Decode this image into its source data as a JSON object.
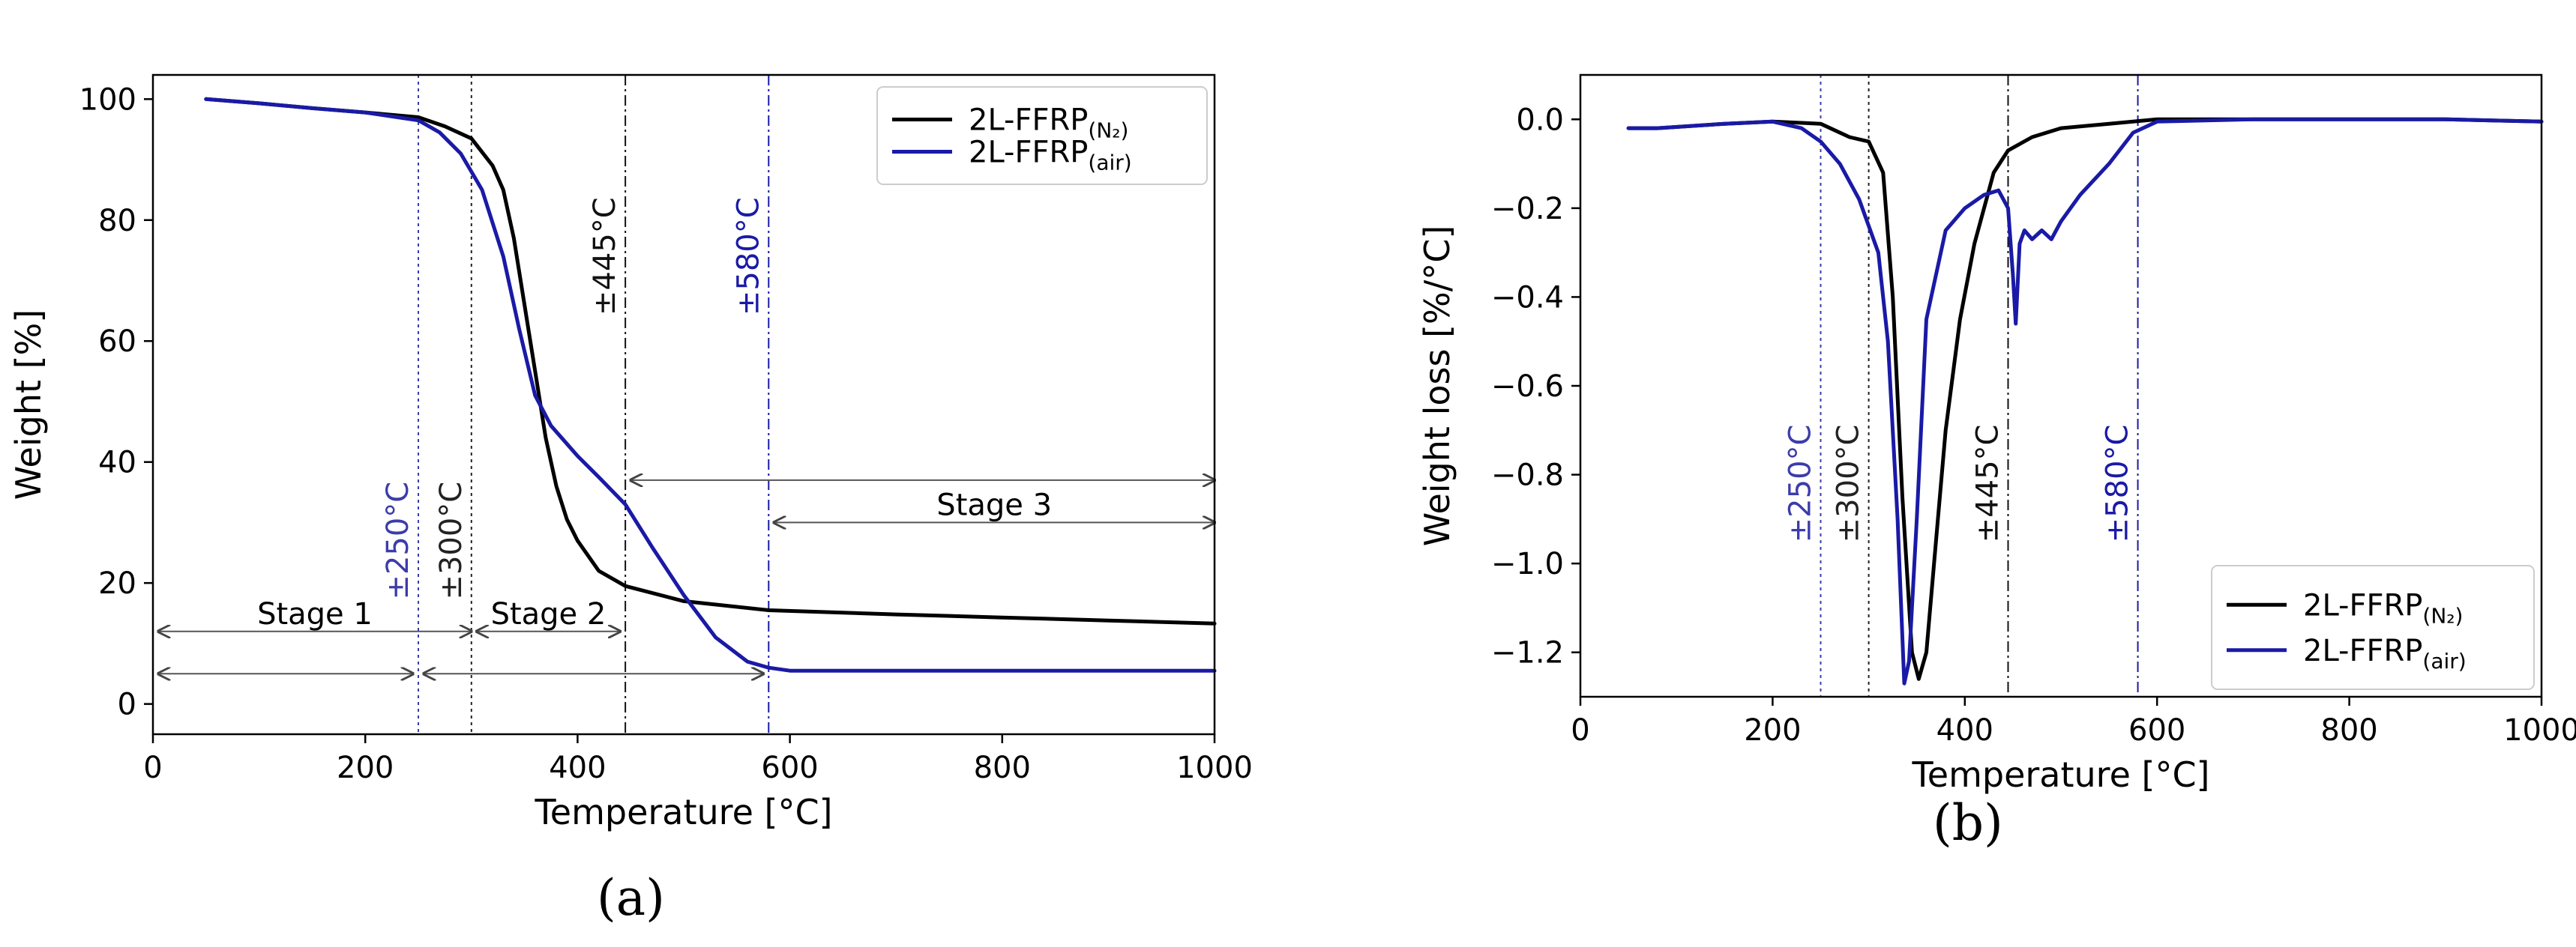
{
  "chart_data": [
    {
      "type": "line",
      "panel_label": "(a)",
      "xlabel": "Temperature [°C]",
      "ylabel": "Weight [%]",
      "xlim": [
        0,
        1000
      ],
      "ylim": [
        -5,
        104
      ],
      "xticks": [
        0,
        200,
        400,
        600,
        800,
        1000
      ],
      "yticks": [
        0,
        20,
        40,
        60,
        80,
        100
      ],
      "grid": false,
      "legend_position": "top-right",
      "series": [
        {
          "name": "2L-FFRP(N₂)",
          "base": "2L-FFRP",
          "sub": "(N₂)",
          "color": "#000000",
          "x": [
            50,
            100,
            150,
            200,
            250,
            275,
            300,
            320,
            330,
            340,
            350,
            360,
            370,
            380,
            390,
            400,
            420,
            445,
            500,
            580,
            700,
            800,
            900,
            1000
          ],
          "y": [
            100,
            99.3,
            98.5,
            97.8,
            97,
            95.5,
            93.5,
            89,
            85,
            77,
            66,
            55,
            44,
            36,
            30.5,
            27,
            22,
            19.5,
            17,
            15.5,
            14.8,
            14.3,
            13.8,
            13.3
          ]
        },
        {
          "name": "2L-FFRP(air)",
          "base": "2L-FFRP",
          "sub": "(air)",
          "color": "#1a1aa6",
          "x": [
            50,
            100,
            150,
            200,
            250,
            270,
            290,
            310,
            330,
            345,
            360,
            375,
            400,
            420,
            445,
            470,
            500,
            530,
            560,
            580,
            600,
            700,
            800,
            900,
            1000
          ],
          "y": [
            100,
            99.3,
            98.5,
            97.8,
            96.5,
            94.5,
            91,
            85,
            74,
            62,
            51,
            46,
            41,
            37.5,
            33,
            26,
            18,
            11,
            7,
            6,
            5.5,
            5.5,
            5.5,
            5.5,
            5.5
          ]
        }
      ],
      "vlines": [
        {
          "x": 250,
          "label": "±250°C",
          "color": "#3c3caa",
          "style": "dotted",
          "label_y": 27
        },
        {
          "x": 300,
          "label": "±300°C",
          "color": "#222222",
          "style": "dotted",
          "label_y": 27
        },
        {
          "x": 445,
          "label": "±445°C",
          "color": "#111111",
          "style": "dashdot",
          "label_y": 74
        },
        {
          "x": 580,
          "label": "±580°C",
          "color": "#1a1aa6",
          "style": "dashdot",
          "label_y": 74
        }
      ],
      "stages": [
        {
          "label": "Stage 1",
          "x0": 5,
          "x1": 300,
          "y": 12
        },
        {
          "label": "",
          "x0": 5,
          "x1": 245,
          "y": 5
        },
        {
          "label": "Stage 2",
          "x0": 305,
          "x1": 440,
          "y": 12
        },
        {
          "label": "",
          "x0": 255,
          "x1": 575,
          "y": 5
        },
        {
          "label": "",
          "x0": 450,
          "x1": 1000,
          "y": 37
        },
        {
          "label": "Stage 3",
          "x0": 585,
          "x1": 1000,
          "y": 30
        }
      ]
    },
    {
      "type": "line",
      "panel_label": "(b)",
      "xlabel": "Temperature [°C]",
      "ylabel": "Weight loss [%/°C]",
      "xlim": [
        0,
        1000
      ],
      "ylim": [
        -1.3,
        0.1
      ],
      "xticks": [
        0,
        200,
        400,
        600,
        800,
        1000
      ],
      "yticks": [
        0.0,
        -0.2,
        -0.4,
        -0.6,
        -0.8,
        -1.0,
        -1.2
      ],
      "ytick_labels": [
        "0.0",
        "−0.2",
        "−0.4",
        "−0.6",
        "−0.8",
        "−1.0",
        "−1.2"
      ],
      "grid": false,
      "legend_position": "lower-right",
      "series": [
        {
          "name": "2L-FFRP(N₂)",
          "base": "2L-FFRP",
          "sub": "(N₂)",
          "color": "#000000",
          "x": [
            50,
            80,
            150,
            200,
            250,
            280,
            300,
            315,
            325,
            335,
            345,
            352,
            360,
            370,
            380,
            395,
            410,
            430,
            445,
            470,
            500,
            550,
            600,
            700,
            800,
            900,
            1000
          ],
          "y": [
            -0.02,
            -0.02,
            -0.01,
            -0.005,
            -0.01,
            -0.04,
            -0.05,
            -0.12,
            -0.4,
            -0.85,
            -1.2,
            -1.26,
            -1.2,
            -0.95,
            -0.7,
            -0.45,
            -0.28,
            -0.12,
            -0.07,
            -0.04,
            -0.02,
            -0.01,
            0,
            0,
            0,
            0,
            -0.005
          ]
        },
        {
          "name": "2L-FFRP(air)",
          "base": "2L-FFRP",
          "sub": "(air)",
          "color": "#1a1aa6",
          "x": [
            50,
            80,
            150,
            200,
            230,
            250,
            270,
            290,
            310,
            320,
            330,
            337,
            342,
            350,
            360,
            380,
            400,
            420,
            435,
            445,
            450,
            453,
            457,
            462,
            470,
            480,
            490,
            500,
            520,
            550,
            575,
            600,
            700,
            800,
            900,
            1000
          ],
          "y": [
            -0.02,
            -0.02,
            -0.01,
            -0.005,
            -0.02,
            -0.05,
            -0.1,
            -0.18,
            -0.3,
            -0.5,
            -0.9,
            -1.27,
            -1.22,
            -0.9,
            -0.45,
            -0.25,
            -0.2,
            -0.17,
            -0.16,
            -0.2,
            -0.35,
            -0.46,
            -0.28,
            -0.25,
            -0.27,
            -0.25,
            -0.27,
            -0.23,
            -0.17,
            -0.1,
            -0.03,
            -0.005,
            0,
            0,
            0,
            -0.005
          ]
        }
      ],
      "vlines": [
        {
          "x": 250,
          "label": "±250°C",
          "color": "#3c3caa",
          "style": "dotted",
          "label_y": -0.82
        },
        {
          "x": 300,
          "label": "±300°C",
          "color": "#222222",
          "style": "dotted",
          "label_y": -0.82
        },
        {
          "x": 445,
          "label": "±445°C",
          "color": "#111111",
          "style": "dashdot",
          "label_y": -0.82
        },
        {
          "x": 580,
          "label": "±580°C",
          "color": "#1a1aa6",
          "style": "dashdot",
          "label_y": -0.82
        }
      ]
    }
  ]
}
